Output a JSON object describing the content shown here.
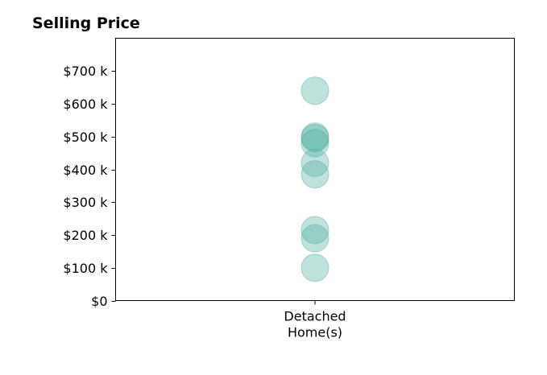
{
  "chart_data": {
    "type": "scatter",
    "title": "Selling Price",
    "xlabel": "",
    "ylabel": "",
    "categories": [
      "Detached\nHome(s)"
    ],
    "y_ticks": [
      {
        "value": 0,
        "label": "$0"
      },
      {
        "value": 100000,
        "label": "$100 k"
      },
      {
        "value": 200000,
        "label": "$200 k"
      },
      {
        "value": 300000,
        "label": "$300 k"
      },
      {
        "value": 400000,
        "label": "$400 k"
      },
      {
        "value": 500000,
        "label": "$500 k"
      },
      {
        "value": 600000,
        "label": "$600 k"
      },
      {
        "value": 700000,
        "label": "$700 k"
      }
    ],
    "ylim": [
      0,
      800000
    ],
    "grid": false,
    "legend": "none",
    "marker_color": "#4aab9f",
    "marker_opacity": 0.35,
    "series": [
      {
        "category": "Detached\nHome(s)",
        "values": [
          640000,
          500000,
          495000,
          480000,
          420000,
          385000,
          215000,
          190000,
          100000
        ]
      }
    ]
  }
}
